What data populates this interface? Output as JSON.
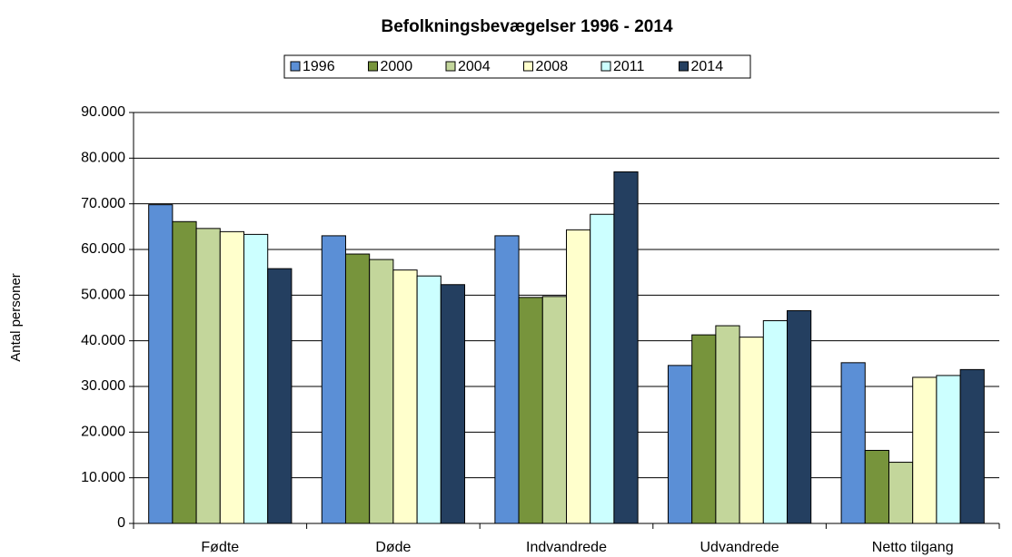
{
  "chart_data": {
    "type": "bar",
    "title": "Befolkningsbevægelser 1996 - 2014",
    "y_label": "Antal personer",
    "categories": [
      "Fødte",
      "Døde",
      "Indvandrede",
      "Udvandrede",
      "Netto tilgang"
    ],
    "series": [
      {
        "name": "1996",
        "color": "#5b8fd6",
        "values": [
          69800,
          63000,
          63000,
          34600,
          35200
        ]
      },
      {
        "name": "2000",
        "color": "#77943c",
        "values": [
          66100,
          59000,
          49500,
          41300,
          16000
        ]
      },
      {
        "name": "2004",
        "color": "#c3d69b",
        "values": [
          64600,
          57800,
          49700,
          43300,
          13400
        ]
      },
      {
        "name": "2008",
        "color": "#ffffcc",
        "values": [
          63900,
          55500,
          64300,
          40800,
          32000
        ]
      },
      {
        "name": "2011",
        "color": "#ccffff",
        "values": [
          63300,
          54200,
          67700,
          44400,
          32400
        ]
      },
      {
        "name": "2014",
        "color": "#243f60",
        "values": [
          55800,
          52300,
          77000,
          46600,
          33700
        ]
      }
    ],
    "ylim": [
      0,
      90000
    ],
    "yticks": [
      0,
      {
        "value": 10000,
        "label": "10.000"
      },
      {
        "value": 20000,
        "label": "20.000"
      },
      {
        "value": 30000,
        "label": "30.000"
      },
      {
        "value": 40000,
        "label": "40.000"
      },
      {
        "value": 50000,
        "label": "50.000"
      },
      {
        "value": 60000,
        "label": "60.000"
      },
      {
        "value": 70000,
        "label": "70.000"
      },
      {
        "value": 80000,
        "label": "80.000"
      },
      {
        "value": 90000,
        "label": "90.000"
      }
    ],
    "grid": true
  }
}
